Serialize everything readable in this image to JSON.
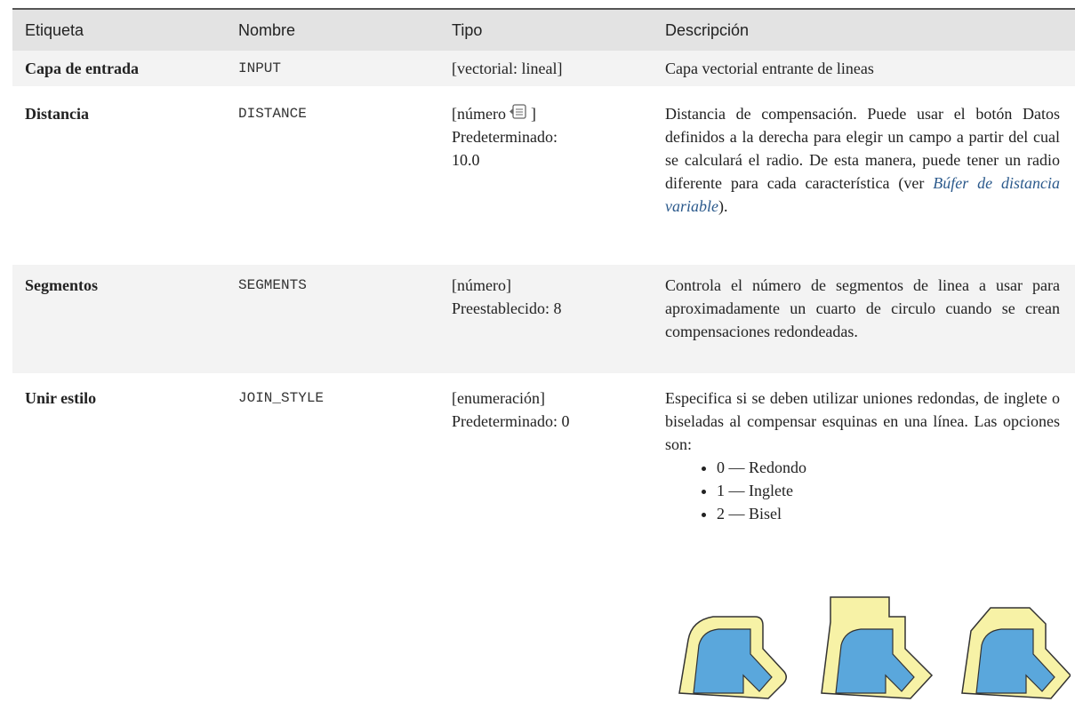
{
  "table": {
    "header": [
      "Etiqueta",
      "Nombre",
      "Tipo",
      "Descripción"
    ],
    "rows": [
      {
        "label": "Capa de entrada",
        "name": "INPUT",
        "type": [
          "[vectorial: lineal]"
        ],
        "description": "Capa vectorial entrante de lineas"
      },
      {
        "label": "Distancia",
        "name": "DISTANCE",
        "type": [
          "[número",
          "]",
          "Predeterminado:",
          "10.0"
        ],
        "description": "Distancia de compensación. Puede usar el botón Datos definidos a la derecha para elegir un campo a partir del cual se calculará el radio. De esta manera, puede tener un radio diferente para cada característica (ver ",
        "link": "Búfer de distancia variable",
        "description_end": ")."
      },
      {
        "label": "Segmentos",
        "name": "SEGMENTS",
        "type": [
          "[número]",
          "Preestablecido: 8"
        ],
        "description": "Controla el número de segmentos de linea a usar para aproximadamente un cuarto de circulo cuando se crean compensaciones redondeadas."
      },
      {
        "label": "Unir estilo",
        "name": "JOIN_STYLE",
        "type": [
          "[enumeración]",
          "Predeterminado: 0"
        ],
        "description": "Especifica si se deben utilizar uniones redondas, de inglete o biseladas al compensar esquinas en una línea. Las opciones son:",
        "options": [
          "0 — Redondo",
          "1 — Inglete",
          "2 — Bisel"
        ]
      }
    ]
  }
}
